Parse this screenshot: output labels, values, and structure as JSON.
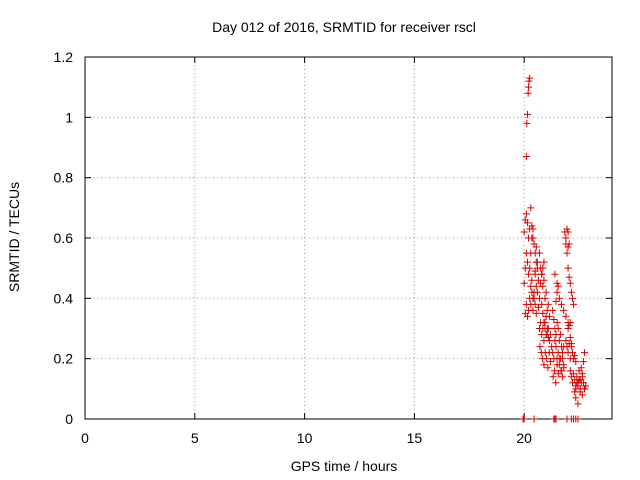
{
  "chart_data": {
    "type": "scatter",
    "title": "Day 012 of 2016, SRMTID for receiver rscl",
    "xlabel": "GPS time / hours",
    "ylabel": "SRMTID / TECUs",
    "xlim": [
      0,
      24
    ],
    "ylim": [
      0,
      1.2
    ],
    "xticks": [
      0,
      5,
      10,
      15,
      20
    ],
    "xtick_labels": [
      "0",
      "5",
      "10",
      "15",
      "20"
    ],
    "yticks": [
      0,
      0.2,
      0.4,
      0.6,
      0.8,
      1,
      1.2
    ],
    "ytick_labels": [
      "0",
      "0.2",
      "0.4",
      "0.6",
      "0.8",
      "1",
      "1.2"
    ],
    "grid": true,
    "marker": "+",
    "colors": {
      "marker": "#dd0000",
      "grid": "#a0a0a0",
      "axis": "#000000"
    },
    "series": [
      {
        "name": "SRMTID",
        "x": [
          20.0,
          20.05,
          20.1,
          20.15,
          20.2,
          20.25,
          20.3,
          20.35,
          20.4,
          20.45,
          20.5,
          20.55,
          20.6,
          20.0,
          20.05,
          20.1,
          20.15,
          20.2,
          20.25,
          20.3,
          20.35,
          20.4,
          20.45,
          20.5,
          20.55,
          20.6,
          20.65,
          20.05,
          20.1,
          20.15,
          20.2,
          20.25,
          20.3,
          20.35,
          20.4,
          20.45,
          20.5,
          20.55,
          20.6,
          20.65,
          20.7,
          20.1,
          20.12,
          20.15,
          20.18,
          20.2,
          20.22,
          20.25,
          20.7,
          20.75,
          20.8,
          20.85,
          20.9,
          20.95,
          21.0,
          21.05,
          21.1,
          21.15,
          20.7,
          20.75,
          20.8,
          20.85,
          20.9,
          20.95,
          21.0,
          21.05,
          21.1,
          20.72,
          20.78,
          20.84,
          20.9,
          20.96,
          21.02,
          21.08,
          21.14,
          21.2,
          20.8,
          20.85,
          20.9,
          20.95,
          21.0,
          21.05,
          21.1,
          21.15,
          21.2,
          21.25,
          21.3,
          21.35,
          21.4,
          21.45,
          21.5,
          21.55,
          21.6,
          21.65,
          21.7,
          21.75,
          21.8,
          21.3,
          21.35,
          21.4,
          21.45,
          21.5,
          21.55,
          21.6,
          21.65,
          21.7,
          21.75,
          21.8,
          21.32,
          21.38,
          21.44,
          21.5,
          21.56,
          21.62,
          21.68,
          21.74,
          21.8,
          21.4,
          21.5,
          21.6,
          21.7,
          21.8,
          21.9,
          22.0,
          21.85,
          21.9,
          21.95,
          22.0,
          22.05,
          22.1,
          22.15,
          22.2,
          22.25,
          21.9,
          21.95,
          22.0,
          22.05,
          22.1,
          22.15,
          22.2,
          22.25,
          22.3,
          22.35,
          22.1,
          22.15,
          22.2,
          22.25,
          22.3,
          22.35,
          22.4,
          22.45,
          22.5,
          22.55,
          22.6,
          22.65,
          22.7,
          22.75,
          22.3,
          22.35,
          22.4,
          22.45,
          22.5,
          22.55,
          22.6,
          22.65,
          22.7,
          22.75,
          22.8,
          22.35,
          22.45,
          22.55,
          22.65,
          22.75,
          22.0,
          22.05,
          22.1,
          22.0,
          22.05,
          21.9,
          21.95,
          22.0,
          22.1,
          22.15,
          21.45,
          21.5,
          21.55,
          20.3,
          20.35,
          20.4,
          20.5,
          20.55,
          20.75,
          20.8,
          20.85,
          20.9,
          19.95,
          20.0,
          20.45,
          21.35,
          21.4,
          21.45,
          21.95,
          22.15,
          22.25,
          22.35,
          22.45
        ],
        "y": [
          0.62,
          0.66,
          0.68,
          0.65,
          0.6,
          0.63,
          0.7,
          0.64,
          0.6,
          0.58,
          0.55,
          0.57,
          0.52,
          0.45,
          0.5,
          0.55,
          0.52,
          0.48,
          0.5,
          0.44,
          0.46,
          0.4,
          0.42,
          0.48,
          0.44,
          0.5,
          0.46,
          0.35,
          0.38,
          0.34,
          0.36,
          0.4,
          0.38,
          0.42,
          0.36,
          0.4,
          0.38,
          0.35,
          0.42,
          0.37,
          0.4,
          0.87,
          0.98,
          1.01,
          1.08,
          1.1,
          1.12,
          1.13,
          0.55,
          0.5,
          0.48,
          0.44,
          0.46,
          0.4,
          0.42,
          0.36,
          0.38,
          0.34,
          0.3,
          0.32,
          0.28,
          0.3,
          0.26,
          0.32,
          0.28,
          0.3,
          0.27,
          0.24,
          0.22,
          0.2,
          0.18,
          0.22,
          0.2,
          0.17,
          0.22,
          0.19,
          0.38,
          0.35,
          0.32,
          0.3,
          0.34,
          0.28,
          0.3,
          0.26,
          0.28,
          0.24,
          0.22,
          0.2,
          0.26,
          0.24,
          0.2,
          0.22,
          0.18,
          0.2,
          0.16,
          0.2,
          0.18,
          0.36,
          0.33,
          0.3,
          0.28,
          0.32,
          0.3,
          0.26,
          0.28,
          0.24,
          0.22,
          0.24,
          0.14,
          0.16,
          0.12,
          0.18,
          0.15,
          0.2,
          0.16,
          0.14,
          0.17,
          0.48,
          0.45,
          0.4,
          0.38,
          0.36,
          0.34,
          0.32,
          0.62,
          0.58,
          0.55,
          0.5,
          0.47,
          0.45,
          0.42,
          0.4,
          0.38,
          0.26,
          0.24,
          0.22,
          0.25,
          0.2,
          0.24,
          0.22,
          0.2,
          0.21,
          0.19,
          0.16,
          0.14,
          0.12,
          0.15,
          0.13,
          0.11,
          0.14,
          0.12,
          0.16,
          0.13,
          0.17,
          0.15,
          0.19,
          0.22,
          0.09,
          0.1,
          0.12,
          0.11,
          0.13,
          0.1,
          0.12,
          0.14,
          0.12,
          0.1,
          0.11,
          0.07,
          0.05,
          0.09,
          0.08,
          0.1,
          0.3,
          0.31,
          0.32,
          0.57,
          0.58,
          0.6,
          0.63,
          0.62,
          0.27,
          0.25,
          0.39,
          0.42,
          0.44,
          0.55,
          0.6,
          0.63,
          0.49,
          0.52,
          0.45,
          0.48,
          0.5,
          0.52,
          0.0,
          0.0,
          0.0,
          0.0,
          0.0,
          0.0,
          0.0,
          0.0,
          0.0,
          0.0,
          0.0
        ]
      }
    ]
  }
}
